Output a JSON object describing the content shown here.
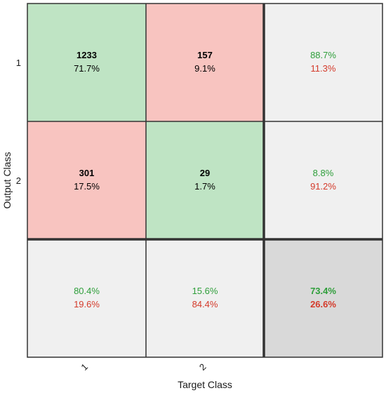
{
  "chart_data": {
    "type": "heatmap",
    "title": "",
    "xlabel": "Target Class",
    "ylabel": "Output Class",
    "x_tick_labels": [
      "1",
      "2"
    ],
    "y_tick_labels": [
      "1",
      "2"
    ],
    "colors": {
      "correct": "#bfe4c4",
      "incorrect": "#f8c4c0",
      "summary": "#f0f0f0",
      "total": "#d9d9d9",
      "green_text": "#2e9e3a",
      "red_text": "#d43a2a",
      "grid": "#333333"
    },
    "matrix": [
      [
        {
          "count": "1233",
          "pct": "71.7%",
          "kind": "correct"
        },
        {
          "count": "157",
          "pct": "9.1%",
          "kind": "incorrect"
        },
        {
          "top": "88.7%",
          "bottom": "11.3%",
          "kind": "summary"
        }
      ],
      [
        {
          "count": "301",
          "pct": "17.5%",
          "kind": "incorrect"
        },
        {
          "count": "29",
          "pct": "1.7%",
          "kind": "correct"
        },
        {
          "top": "8.8%",
          "bottom": "91.2%",
          "kind": "summary"
        }
      ],
      [
        {
          "top": "80.4%",
          "bottom": "19.6%",
          "kind": "summary"
        },
        {
          "top": "15.6%",
          "bottom": "84.4%",
          "kind": "summary"
        },
        {
          "top": "73.4%",
          "bottom": "26.6%",
          "kind": "total"
        }
      ]
    ]
  }
}
